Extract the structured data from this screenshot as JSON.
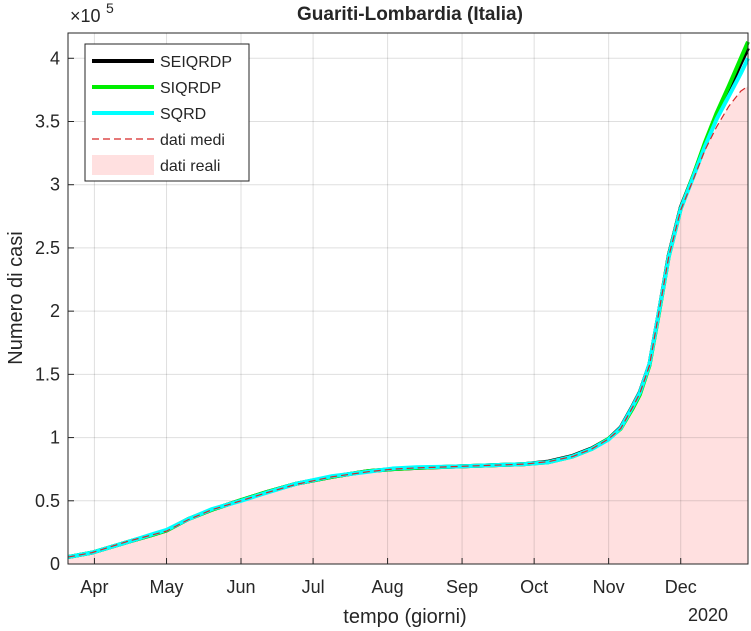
{
  "chart_data": {
    "type": "line",
    "title": "Guariti-Lombardia (Italia)",
    "xlabel": "tempo (giorni)",
    "ylabel": "Numero di casi",
    "y_exponent_label": "×10",
    "y_exponent_power": "5",
    "year_label": "2020",
    "x_ticks": [
      "Apr",
      "May",
      "Jun",
      "Jul",
      "Aug",
      "Sep",
      "Oct",
      "Nov",
      "Dec"
    ],
    "x_tick_days": [
      1,
      31,
      62,
      92,
      123,
      154,
      184,
      215,
      245
    ],
    "x_range_days": [
      -10,
      273
    ],
    "y_ticks": [
      "0",
      "0.5",
      "1",
      "1.5",
      "2",
      "2.5",
      "3",
      "3.5",
      "4"
    ],
    "y_tick_values": [
      0,
      50000,
      100000,
      150000,
      200000,
      250000,
      300000,
      350000,
      400000
    ],
    "ylim": [
      0,
      420000
    ],
    "grid": true,
    "legend_position": "top-left",
    "x_days": [
      -10,
      0,
      15,
      25,
      31,
      40,
      50,
      62,
      72,
      85,
      100,
      115,
      125,
      135,
      150,
      165,
      180,
      190,
      200,
      208,
      215,
      220,
      225,
      228,
      232,
      236,
      240,
      245,
      250,
      255,
      260,
      265,
      270,
      273
    ],
    "real_values": [
      5500,
      9000,
      18000,
      23000,
      26000,
      35000,
      43000,
      50000,
      56000,
      63000,
      69000,
      73000,
      75000,
      76000,
      77000,
      78000,
      79000,
      81000,
      85000,
      91000,
      99000,
      107000,
      124000,
      135000,
      157000,
      200000,
      243000,
      280000,
      303000,
      327000,
      346000,
      362000,
      374000,
      378000
    ],
    "series": [
      {
        "name": "SEIQRDP",
        "color": "#000000",
        "values": [
          5500,
          9000,
          17500,
          23000,
          26500,
          35500,
          43000,
          50500,
          56500,
          63500,
          69000,
          73500,
          75000,
          76000,
          77000,
          78000,
          79000,
          81000,
          85500,
          91500,
          99000,
          108000,
          125000,
          136000,
          158000,
          200000,
          244000,
          282000,
          306000,
          332000,
          355000,
          375000,
          396000,
          408000
        ]
      },
      {
        "name": "SIQRDP",
        "color": "#00ee00",
        "values": [
          5500,
          9000,
          17500,
          23000,
          26500,
          35500,
          43000,
          50500,
          56500,
          63500,
          69000,
          73500,
          75000,
          76000,
          77000,
          78000,
          79000,
          80500,
          85000,
          91000,
          99000,
          107000,
          123000,
          134000,
          157000,
          199000,
          243000,
          281000,
          306000,
          333000,
          357000,
          378000,
          400000,
          413000
        ]
      },
      {
        "name": "SQRD",
        "color": "#00ffff",
        "values": [
          5500,
          9000,
          17500,
          23500,
          27000,
          35500,
          43500,
          50000,
          56000,
          63500,
          69500,
          73000,
          75500,
          76500,
          77000,
          78000,
          79000,
          80500,
          85000,
          91000,
          98500,
          107500,
          124500,
          135500,
          158000,
          200000,
          243000,
          281000,
          305000,
          330000,
          352000,
          370000,
          388000,
          400000
        ]
      },
      {
        "name": "dati medi",
        "color": "#d62728",
        "values": [
          5500,
          9000,
          18000,
          23000,
          26000,
          35000,
          43000,
          50000,
          56000,
          63000,
          69000,
          73000,
          75000,
          76000,
          77000,
          78000,
          79000,
          81000,
          85000,
          91000,
          99000,
          107000,
          124000,
          135000,
          157000,
          200000,
          243000,
          280000,
          303000,
          327000,
          346000,
          362000,
          374000,
          378000
        ]
      }
    ],
    "real_series": {
      "name": "dati reali",
      "color": "#ffe0e0"
    }
  }
}
